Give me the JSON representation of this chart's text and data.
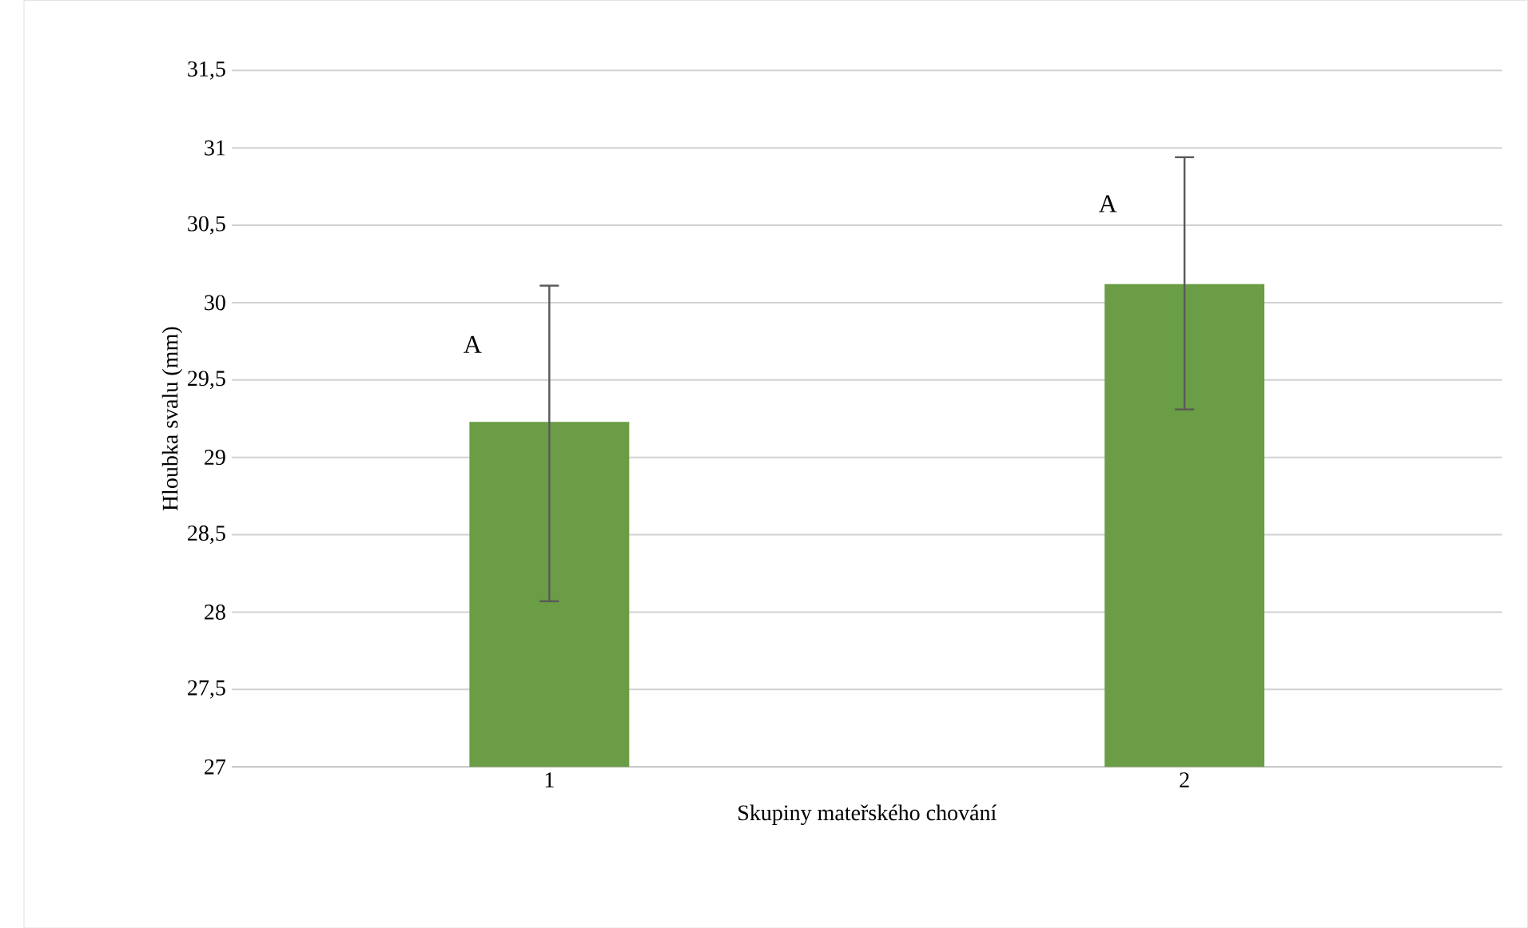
{
  "chart_data": {
    "type": "bar",
    "xlabel": "Skupiny mateřského chování",
    "ylabel": "Hloubka svalu (mm)",
    "categories": [
      "1",
      "2"
    ],
    "values": [
      29.23,
      30.12
    ],
    "errors": [
      [
        28.07,
        30.11
      ],
      [
        29.31,
        30.94
      ]
    ],
    "color": "#6a9d45",
    "ylim": [
      27,
      31.5
    ],
    "yticks": [
      {
        "value": 27,
        "label": "27"
      },
      {
        "value": 27.5,
        "label": "27,5"
      },
      {
        "value": 28,
        "label": "28"
      },
      {
        "value": 28.5,
        "label": "28,5"
      },
      {
        "value": 29,
        "label": "29"
      },
      {
        "value": 29.5,
        "label": "29,5"
      },
      {
        "value": 30,
        "label": "30"
      },
      {
        "value": 30.5,
        "label": "30,5"
      },
      {
        "value": 31,
        "label": "31"
      },
      {
        "value": 31.5,
        "label": "31,5"
      }
    ],
    "grid": "y",
    "annotations": [
      {
        "text": "A",
        "x": "1",
        "y": 29.73
      },
      {
        "text": "A",
        "x": "2",
        "y": 30.64
      }
    ]
  }
}
